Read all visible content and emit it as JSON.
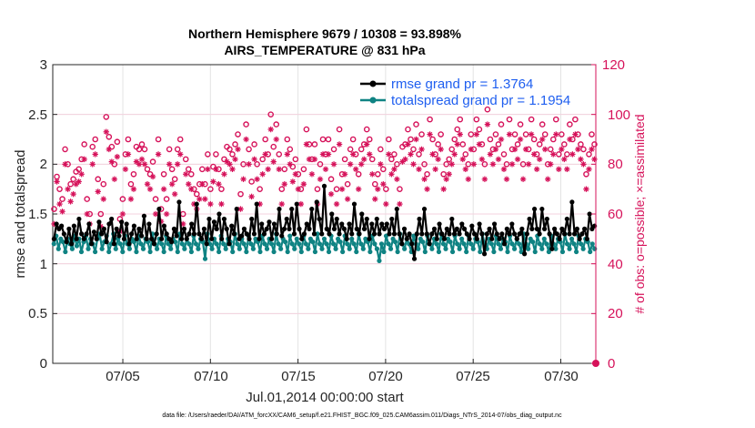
{
  "chart_data": {
    "type": "line",
    "title": "Northern Hemisphere 9679 / 10308 = 93.898%",
    "subtitle": "AIRS_TEMPERATURE @ 831 hPa",
    "xlabel": "Jul.01,2014 00:00:00 start",
    "ylabel": "rmse and totalspread",
    "ylabel_right": "# of obs: o=possible; ×=assimilated",
    "ylim": [
      0,
      3
    ],
    "ylim_right": [
      0,
      120
    ],
    "xlim": [
      1,
      32
    ],
    "x_tick_values": [
      5,
      10,
      15,
      20,
      25,
      30
    ],
    "x_tick_labels": [
      "07/05",
      "07/10",
      "07/15",
      "07/20",
      "07/25",
      "07/30"
    ],
    "y_tick_labels": [
      "0",
      "0.5",
      "1",
      "1.5",
      "2",
      "2.5",
      "3"
    ],
    "y_tick_labels_right": [
      "0",
      "20",
      "40",
      "60",
      "80",
      "100",
      "120"
    ],
    "legend_position": "top-right",
    "series": [
      {
        "name": "rmse grand pr = 1.3764",
        "color": "#000000",
        "values": [
          1.25,
          1.4,
          1.35,
          1.38,
          1.3,
          1.22,
          1.35,
          1.2,
          1.38,
          1.25,
          1.45,
          1.3,
          1.25,
          1.3,
          1.4,
          1.2,
          1.32,
          1.25,
          1.42,
          1.3,
          1.35,
          1.22,
          1.4,
          1.45,
          1.2,
          1.35,
          1.28,
          1.42,
          1.25,
          1.4,
          1.2,
          1.3,
          1.38,
          1.25,
          1.35,
          1.28,
          1.48,
          1.25,
          1.4,
          1.25,
          1.2,
          1.3,
          1.55,
          1.25,
          1.38,
          1.3,
          1.25,
          1.22,
          1.35,
          1.28,
          1.62,
          1.25,
          1.35,
          1.25,
          1.3,
          1.4,
          1.3,
          1.6,
          1.3,
          1.25,
          1.35,
          1.2,
          1.45,
          1.25,
          1.42,
          1.35,
          1.5,
          1.25,
          1.45,
          1.35,
          1.2,
          1.38,
          1.3,
          1.55,
          1.25,
          1.28,
          1.35,
          1.3,
          1.25,
          1.45,
          1.3,
          1.6,
          1.25,
          1.4,
          1.3,
          1.35,
          1.42,
          1.25,
          1.4,
          1.3,
          1.55,
          1.28,
          1.35,
          1.45,
          1.35,
          1.55,
          1.3,
          1.6,
          1.35,
          1.25,
          1.3,
          1.4,
          1.35,
          1.55,
          1.3,
          1.62,
          1.45,
          1.3,
          1.78,
          1.35,
          1.3,
          1.5,
          1.35,
          1.45,
          1.3,
          1.4,
          1.35,
          1.25,
          1.4,
          1.3,
          1.6,
          1.35,
          1.3,
          1.5,
          1.35,
          1.45,
          1.25,
          1.4,
          1.3,
          1.45,
          1.3,
          1.4,
          1.35,
          1.4,
          1.3,
          1.45,
          1.3,
          1.55,
          1.3,
          1.2,
          1.35,
          1.25,
          1.3,
          1.2,
          1.05,
          1.3,
          1.45,
          1.3,
          1.55,
          1.3,
          1.2,
          1.3,
          1.35,
          1.25,
          1.4,
          1.3,
          1.25,
          1.35,
          1.3,
          1.45,
          1.3,
          1.35,
          1.3,
          1.4,
          1.35,
          1.3,
          1.25,
          1.38,
          1.3,
          1.25,
          1.4,
          1.3,
          1.1,
          1.3,
          1.35,
          1.25,
          1.4,
          1.3,
          1.25,
          1.3,
          1.2,
          1.35,
          1.3,
          1.4,
          1.3,
          1.25,
          1.3,
          1.35,
          1.1,
          1.3,
          1.45,
          1.35,
          1.55,
          1.35,
          1.3,
          1.55,
          1.35,
          1.45,
          1.3,
          1.15,
          1.35,
          1.3,
          1.25,
          1.35,
          1.3,
          1.45,
          1.3,
          1.62,
          1.3,
          1.35,
          1.25,
          1.3,
          1.35,
          1.25,
          1.5,
          1.35,
          1.38
        ]
      },
      {
        "name": "totalspread grand pr = 1.1954",
        "color": "#0f8383",
        "values": [
          1.2,
          1.28,
          1.15,
          1.25,
          1.22,
          1.12,
          1.25,
          1.2,
          1.15,
          1.28,
          1.18,
          1.25,
          1.12,
          1.22,
          1.28,
          1.15,
          1.25,
          1.2,
          1.12,
          1.25,
          1.3,
          1.15,
          1.22,
          1.28,
          1.12,
          1.2,
          1.3,
          1.15,
          1.25,
          1.2,
          1.12,
          1.28,
          1.2,
          1.15,
          1.25,
          1.22,
          1.12,
          1.28,
          1.2,
          1.15,
          1.25,
          1.22,
          1.12,
          1.3,
          1.2,
          1.15,
          1.25,
          1.2,
          1.12,
          1.28,
          1.2,
          1.15,
          1.25,
          1.22,
          1.12,
          1.3,
          1.2,
          1.15,
          1.25,
          1.2,
          1.12,
          1.28,
          1.2,
          1.15,
          1.25,
          1.22,
          1.05,
          1.3,
          1.2,
          1.15,
          1.25,
          1.2,
          1.12,
          1.28,
          1.2,
          1.15,
          1.25,
          1.22,
          1.12,
          1.3,
          1.2,
          1.15,
          1.25,
          1.2,
          1.12,
          1.28,
          1.2,
          1.15,
          1.25,
          1.22,
          1.12,
          1.28,
          1.2,
          1.15,
          1.25,
          1.2,
          1.12,
          1.3,
          1.2,
          1.15,
          1.25,
          1.22,
          1.12,
          1.28,
          1.2,
          1.15,
          1.25,
          1.2,
          1.12,
          1.28,
          1.2,
          1.15,
          1.25,
          1.22,
          1.12,
          1.3,
          1.2,
          1.15,
          1.25,
          1.2,
          1.12,
          1.28,
          1.2,
          1.15,
          1.25,
          1.22,
          1.12,
          1.28,
          1.2,
          1.15,
          1.25,
          1.2,
          1.12,
          1.3,
          1.2,
          1.15,
          1.25,
          1.22,
          1.12,
          1.28,
          1.2,
          1.15,
          1.03,
          1.2,
          1.12,
          1.28,
          1.2,
          1.15,
          1.25,
          1.22,
          1.12,
          1.3,
          1.2,
          1.15,
          1.25,
          1.2,
          1.12,
          1.28,
          1.2,
          1.15,
          1.25,
          1.22,
          1.12,
          1.28,
          1.2,
          1.15,
          1.25,
          1.2,
          1.12,
          1.3,
          1.2,
          1.15,
          1.25,
          1.22,
          1.12,
          1.28,
          1.2,
          1.15,
          1.25,
          1.2,
          1.12,
          1.28,
          1.2,
          1.15,
          1.25,
          1.22,
          1.12,
          1.3,
          1.2,
          1.15,
          1.25,
          1.2,
          1.12,
          1.28,
          1.2,
          1.15,
          1.25,
          1.22,
          1.12,
          1.28,
          1.2,
          1.15,
          1.25,
          1.2,
          1.12,
          1.3,
          1.2,
          1.15,
          1.25,
          1.22,
          1.12,
          1.28,
          1.2,
          1.15,
          1.25,
          1.2,
          1.12,
          1.28,
          1.2,
          1.15,
          1.25,
          1.22,
          1.12,
          1.3,
          1.2,
          1.15,
          1.25,
          1.2,
          1.12,
          1.28,
          1.2,
          1.15,
          1.25,
          1.22,
          1.12,
          1.2,
          1.15
        ]
      },
      {
        "name": "obs possible",
        "axis": "right",
        "marker": "o",
        "color": "#d6125a",
        "values": [
          62,
          75,
          70,
          66,
          86,
          80,
          72,
          74,
          77,
          78,
          82,
          88,
          66,
          60,
          87,
          90,
          74,
          60,
          72,
          99,
          91,
          87,
          80,
          89,
          58,
          66,
          84,
          90,
          72,
          76,
          87,
          86,
          88,
          86,
          78,
          76,
          81,
          66,
          90,
          62,
          76,
          66,
          86,
          78,
          74,
          86,
          90,
          60,
          82,
          78,
          76,
          70,
          68,
          72,
          78,
          72,
          84,
          70,
          79,
          84,
          78,
          70,
          82,
          87,
          86,
          84,
          88,
          92,
          68,
          80,
          96,
          86,
          73,
          88,
          80,
          70,
          82,
          90,
          84,
          100,
          87,
          96,
          84,
          70,
          78,
          90,
          86,
          79,
          82,
          76,
          70,
          78,
          94,
          88,
          82,
          88,
          70,
          80,
          90,
          84,
          90,
          74,
          86,
          70,
          94,
          76,
          82,
          72,
          86,
          90,
          84,
          76,
          86,
          88,
          94,
          90,
          82,
          72,
          76,
          86,
          78,
          70,
          90,
          82,
          84,
          80,
          70,
          87,
          88,
          94,
          90,
          86,
          96,
          84,
          92,
          80,
          76,
          98,
          90,
          84,
          88,
          92,
          76,
          80,
          82,
          86,
          90,
          94,
          98,
          88,
          84,
          80,
          92,
          86,
          98,
          94,
          88,
          80,
          102,
          90,
          86,
          92,
          88,
          96,
          84,
          80,
          98,
          86,
          92,
          88,
          96,
          80,
          92,
          86,
          98,
          90,
          84,
          88,
          96,
          92,
          80,
          86,
          90,
          98,
          84,
          92,
          88,
          84,
          96,
          90,
          98,
          92,
          88,
          86,
          76,
          84,
          92,
          88
        ]
      },
      {
        "name": "obs assimilated",
        "axis": "right",
        "marker": "*",
        "color": "#d6125a",
        "values": [
          56,
          73,
          64,
          61,
          80,
          70,
          65,
          68,
          72,
          73,
          76,
          82,
          60,
          56,
          80,
          84,
          69,
          55,
          66,
          93,
          86,
          81,
          74,
          83,
          53,
          60,
          78,
          84,
          66,
          70,
          81,
          80,
          82,
          80,
          72,
          70,
          75,
          60,
          84,
          57,
          70,
          60,
          80,
          72,
          68,
          80,
          84,
          56,
          76,
          72,
          70,
          64,
          62,
          66,
          72,
          66,
          78,
          64,
          73,
          78,
          72,
          64,
          76,
          81,
          80,
          78,
          82,
          86,
          62,
          74,
          90,
          80,
          67,
          82,
          74,
          64,
          76,
          84,
          78,
          94,
          81,
          90,
          78,
          64,
          72,
          84,
          80,
          73,
          76,
          70,
          64,
          72,
          88,
          82,
          76,
          82,
          64,
          74,
          84,
          78,
          84,
          68,
          80,
          64,
          88,
          70,
          76,
          66,
          80,
          84,
          78,
          70,
          80,
          82,
          88,
          84,
          76,
          66,
          70,
          80,
          72,
          64,
          84,
          76,
          78,
          74,
          64,
          81,
          82,
          88,
          84,
          80,
          90,
          78,
          86,
          74,
          70,
          92,
          84,
          78,
          82,
          86,
          70,
          74,
          76,
          80,
          84,
          88,
          92,
          82,
          78,
          74,
          86,
          80,
          92,
          88,
          82,
          74,
          96,
          84,
          80,
          86,
          82,
          90,
          78,
          74,
          92,
          80,
          86,
          82,
          90,
          74,
          86,
          80,
          92,
          84,
          78,
          82,
          90,
          86,
          74,
          80,
          84,
          92,
          78,
          86,
          82,
          78,
          90,
          84,
          92,
          86,
          82,
          80,
          70,
          78,
          86,
          82
        ]
      }
    ]
  },
  "footer": {
    "data_file": "data file: /Users/raeder/DAI/ATM_forcXX/CAM6_setup/f.e21.FHIST_BGC.f09_025.CAM6assim.011/Diags_NTrS_2014-07/obs_diag_output.nc"
  }
}
